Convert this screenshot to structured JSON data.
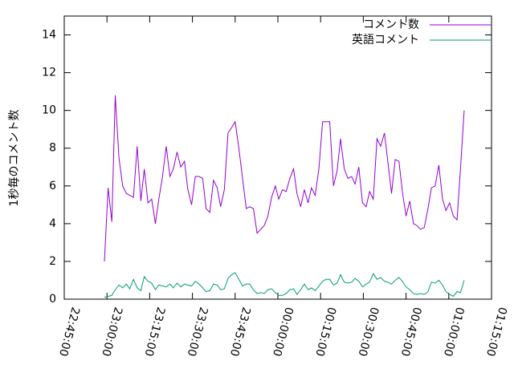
{
  "chart_data": {
    "type": "line",
    "ylabel": "1秒毎のコメント数",
    "xlim": [
      1365,
      1515
    ],
    "xticks": [
      {
        "value": 1365,
        "label": "22:45:00"
      },
      {
        "value": 1380,
        "label": "23:00:00"
      },
      {
        "value": 1395,
        "label": "23:15:00"
      },
      {
        "value": 1410,
        "label": "23:30:00"
      },
      {
        "value": 1425,
        "label": "23:45:00"
      },
      {
        "value": 1440,
        "label": "00:00:00"
      },
      {
        "value": 1455,
        "label": "00:15:00"
      },
      {
        "value": 1470,
        "label": "00:30:00"
      },
      {
        "value": 1485,
        "label": "00:45:00"
      },
      {
        "value": 1500,
        "label": "01:00:00"
      },
      {
        "value": 1515,
        "label": "01:15:00"
      }
    ],
    "ylim": [
      0,
      15
    ],
    "yticks": [
      0,
      2,
      4,
      6,
      8,
      10,
      12,
      14
    ],
    "legend": "top-right",
    "x": [
      1379.1,
      1380.4,
      1381.7,
      1382.9,
      1384.2,
      1385.5,
      1386.8,
      1388.0,
      1389.3,
      1390.6,
      1391.9,
      1393.1,
      1394.4,
      1395.7,
      1397.0,
      1398.2,
      1399.5,
      1400.8,
      1402.1,
      1403.3,
      1404.6,
      1405.9,
      1407.2,
      1408.4,
      1409.7,
      1411.0,
      1412.3,
      1413.6,
      1414.8,
      1416.1,
      1417.4,
      1418.7,
      1419.9,
      1421.2,
      1422.5,
      1423.8,
      1425.0,
      1426.3,
      1427.6,
      1428.9,
      1430.1,
      1431.4,
      1432.7,
      1434.0,
      1435.2,
      1436.5,
      1437.8,
      1439.1,
      1440.3,
      1441.6,
      1442.9,
      1444.2,
      1445.5,
      1446.7,
      1448.0,
      1449.3,
      1450.6,
      1451.8,
      1453.1,
      1454.4,
      1455.7,
      1456.9,
      1458.2,
      1459.5,
      1460.8,
      1462.0,
      1463.3,
      1464.6,
      1465.9,
      1467.1,
      1468.4,
      1469.7,
      1471.0,
      1472.2,
      1473.5,
      1474.8,
      1476.1,
      1477.4,
      1478.6,
      1479.9,
      1481.2,
      1482.5,
      1483.7,
      1485.0,
      1486.3,
      1487.6,
      1488.8,
      1490.1,
      1491.4,
      1492.7,
      1493.9,
      1495.2,
      1496.5,
      1497.8,
      1499.0,
      1500.3,
      1501.6,
      1502.9,
      1504.1,
      1505.4
    ],
    "series": [
      {
        "name": "コメント数",
        "color": "#9400d3",
        "values": [
          2.0,
          5.9,
          4.1,
          10.8,
          7.5,
          6.0,
          5.6,
          5.5,
          5.4,
          8.1,
          5.2,
          6.9,
          5.1,
          5.3,
          4.0,
          5.3,
          6.5,
          8.1,
          6.5,
          6.9,
          7.8,
          7.0,
          7.3,
          5.8,
          5.0,
          6.5,
          6.5,
          6.4,
          4.8,
          4.6,
          6.3,
          5.9,
          4.9,
          5.8,
          8.8,
          9.1,
          9.4,
          8.0,
          6.4,
          4.8,
          4.9,
          4.8,
          3.5,
          3.7,
          3.9,
          4.4,
          5.4,
          6.0,
          5.3,
          5.8,
          5.7,
          6.4,
          6.9,
          5.6,
          4.9,
          5.8,
          5.1,
          5.9,
          5.5,
          6.9,
          9.4,
          9.4,
          9.4,
          6.0,
          6.8,
          8.5,
          6.9,
          6.4,
          6.5,
          6.1,
          7.0,
          5.1,
          4.9,
          5.7,
          5.3,
          8.5,
          8.1,
          8.8,
          7.3,
          5.6,
          7.4,
          7.3,
          5.7,
          4.4,
          5.2,
          4.0,
          3.9,
          3.7,
          3.8,
          4.8,
          5.9,
          6.0,
          7.1,
          5.3,
          4.7,
          5.1,
          4.4,
          4.2,
          6.9,
          10.0
        ]
      },
      {
        "name": "英語コメント",
        "color": "#009e73",
        "values": [
          0.1,
          0.15,
          0.2,
          0.5,
          0.75,
          0.6,
          0.8,
          0.55,
          1.05,
          0.6,
          0.45,
          1.2,
          0.95,
          0.85,
          0.5,
          0.75,
          0.7,
          0.65,
          0.8,
          0.6,
          0.85,
          0.65,
          0.8,
          0.75,
          0.7,
          0.95,
          0.8,
          0.6,
          0.4,
          0.45,
          0.8,
          0.75,
          0.5,
          0.55,
          1.1,
          1.3,
          1.4,
          1.05,
          0.7,
          0.8,
          0.8,
          0.5,
          0.3,
          0.35,
          0.3,
          0.5,
          0.55,
          0.35,
          0.2,
          0.2,
          0.3,
          0.5,
          0.55,
          0.25,
          0.5,
          0.8,
          0.5,
          0.6,
          0.45,
          0.7,
          0.95,
          1.05,
          1.05,
          0.75,
          0.85,
          1.3,
          0.9,
          0.85,
          0.9,
          1.1,
          0.95,
          0.65,
          0.8,
          0.9,
          1.35,
          1.05,
          1.15,
          0.95,
          0.9,
          0.8,
          1.0,
          1.15,
          0.95,
          0.65,
          0.5,
          0.3,
          0.25,
          0.3,
          0.25,
          0.4,
          0.9,
          0.85,
          1.0,
          0.75,
          0.4,
          0.25,
          0.15,
          0.4,
          0.35,
          1.0
        ]
      }
    ]
  }
}
